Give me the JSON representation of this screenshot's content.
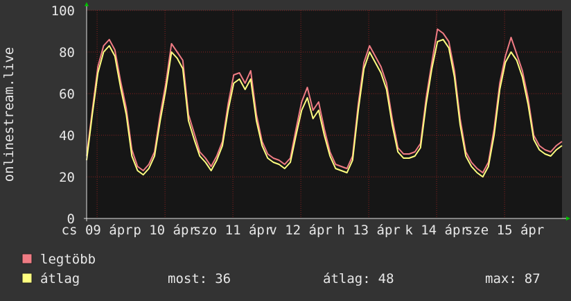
{
  "chart_data": {
    "type": "line",
    "y_label": "onlinestream.live",
    "xlim": [
      0,
      168
    ],
    "ylim": [
      0,
      100
    ],
    "yticks": [
      0,
      20,
      40,
      60,
      80,
      100
    ],
    "xticks": [
      {
        "value": 3.7,
        "label": "cs 09 ápr"
      },
      {
        "value": 27.7,
        "label": "p 10 ápr"
      },
      {
        "value": 51.7,
        "label": "szo 11 ápr"
      },
      {
        "value": 75.7,
        "label": "v 12 ápr"
      },
      {
        "value": 99.7,
        "label": "h 13 ápr"
      },
      {
        "value": 123.7,
        "label": "k 14 ápr"
      },
      {
        "value": 147.7,
        "label": "sze 15 ápr"
      }
    ],
    "grid": true,
    "x": [
      0,
      2,
      4,
      6,
      8,
      10,
      12,
      14,
      16,
      18,
      20,
      22,
      24,
      26,
      28,
      30,
      32,
      34,
      36,
      38,
      40,
      42,
      44,
      46,
      48,
      50,
      52,
      54,
      56,
      58,
      60,
      62,
      64,
      66,
      68,
      70,
      72,
      74,
      76,
      78,
      80,
      82,
      84,
      86,
      88,
      90,
      92,
      94,
      96,
      98,
      100,
      102,
      104,
      106,
      108,
      110,
      112,
      114,
      116,
      118,
      120,
      122,
      124,
      126,
      128,
      130,
      132,
      134,
      136,
      138,
      140,
      142,
      144,
      146,
      148,
      150,
      152,
      154,
      156,
      158,
      160,
      162,
      164,
      166,
      168
    ],
    "series": [
      {
        "name": "legtöbb",
        "color": "#f07c84",
        "values": [
          30,
          52,
          73,
          83,
          86,
          81,
          66,
          53,
          33,
          25,
          23,
          26,
          32,
          50,
          65,
          84,
          80,
          76,
          50,
          41,
          32,
          29,
          25,
          30,
          37,
          55,
          69,
          70,
          65,
          71,
          50,
          37,
          31,
          29,
          28,
          26,
          29,
          43,
          56,
          63,
          52,
          56,
          43,
          32,
          26,
          25,
          24,
          30,
          55,
          75,
          83,
          78,
          73,
          65,
          48,
          34,
          31,
          31,
          32,
          36,
          58,
          75,
          91,
          89,
          85,
          71,
          48,
          32,
          27,
          24,
          22,
          27,
          43,
          65,
          78,
          87,
          79,
          71,
          58,
          40,
          35,
          33,
          32,
          35,
          37
        ]
      },
      {
        "name": "átlag",
        "color": "#ffff80",
        "values": [
          28,
          50,
          70,
          80,
          83,
          78,
          63,
          50,
          30,
          23,
          21,
          24,
          30,
          47,
          62,
          80,
          77,
          72,
          47,
          38,
          30,
          27,
          23,
          28,
          35,
          52,
          65,
          67,
          62,
          67,
          47,
          35,
          29,
          27,
          26,
          24,
          27,
          40,
          52,
          58,
          48,
          52,
          40,
          30,
          24,
          23,
          22,
          28,
          52,
          72,
          80,
          75,
          70,
          62,
          45,
          32,
          29,
          29,
          30,
          34,
          55,
          72,
          85,
          86,
          82,
          68,
          45,
          30,
          25,
          22,
          20,
          25,
          40,
          62,
          75,
          80,
          76,
          68,
          55,
          38,
          33,
          31,
          30,
          33,
          35
        ]
      }
    ],
    "stats": [
      {
        "label": "most:",
        "value": 36
      },
      {
        "label": "átlag:",
        "value": 48
      },
      {
        "label": "max:",
        "value": 87
      }
    ]
  }
}
